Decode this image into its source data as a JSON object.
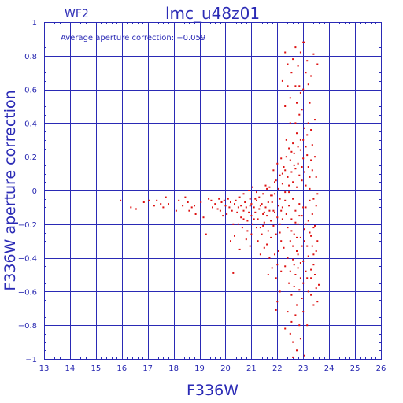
{
  "chart_data": {
    "type": "scatter",
    "title": "lmc_u48z01",
    "subtitle": "WF2",
    "annotation": "Average aperture correction: −0.059",
    "xlabel": "F336W",
    "ylabel": "F336W aperture correction",
    "xlim": [
      13,
      26
    ],
    "ylim": [
      -1,
      1
    ],
    "x_ticks": [
      "13",
      "14",
      "15",
      "16",
      "17",
      "18",
      "19",
      "20",
      "21",
      "22",
      "23",
      "24",
      "25",
      "26"
    ],
    "y_ticks": [
      "1",
      "0.8",
      "0.6",
      "0.4",
      "0.2",
      "0",
      "−0.2",
      "−0.4",
      "−0.6",
      "−0.8",
      "−1"
    ],
    "grid": true,
    "average_line": -0.059,
    "colors": {
      "axes": "#2a2ab5",
      "grid": "#2a2ab5",
      "points": "#dd1111",
      "average_line": "#dd1111"
    },
    "points": [
      [
        15.95,
        -0.06
      ],
      [
        16.35,
        -0.1
      ],
      [
        16.55,
        -0.11
      ],
      [
        16.85,
        -0.07
      ],
      [
        17.05,
        -0.06
      ],
      [
        17.25,
        -0.09
      ],
      [
        17.35,
        -0.06
      ],
      [
        17.5,
        -0.08
      ],
      [
        17.6,
        -0.1
      ],
      [
        17.7,
        -0.04
      ],
      [
        17.8,
        -0.08
      ],
      [
        18.1,
        -0.12
      ],
      [
        18.2,
        -0.06
      ],
      [
        18.35,
        -0.09
      ],
      [
        18.45,
        -0.04
      ],
      [
        18.55,
        -0.07
      ],
      [
        18.6,
        -0.12
      ],
      [
        18.7,
        -0.1
      ],
      [
        18.8,
        -0.09
      ],
      [
        18.85,
        -0.14
      ],
      [
        19.05,
        -0.07
      ],
      [
        19.15,
        -0.16
      ],
      [
        19.25,
        -0.26
      ],
      [
        19.35,
        -0.05
      ],
      [
        19.45,
        -0.06
      ],
      [
        19.5,
        -0.1
      ],
      [
        19.6,
        -0.08
      ],
      [
        19.7,
        -0.11
      ],
      [
        19.75,
        -0.05
      ],
      [
        19.8,
        -0.12
      ],
      [
        19.85,
        -0.07
      ],
      [
        19.9,
        -0.15
      ],
      [
        19.95,
        -0.06
      ],
      [
        20.0,
        -0.09
      ],
      [
        20.05,
        -0.14
      ],
      [
        20.1,
        -0.05
      ],
      [
        20.15,
        -0.1
      ],
      [
        20.2,
        -0.07
      ],
      [
        20.25,
        -0.12
      ],
      [
        20.3,
        -0.2
      ],
      [
        20.35,
        -0.08
      ],
      [
        20.4,
        -0.06
      ],
      [
        20.45,
        -0.13
      ],
      [
        20.5,
        -0.1
      ],
      [
        20.55,
        -0.04
      ],
      [
        20.6,
        -0.16
      ],
      [
        20.6,
        -0.09
      ],
      [
        20.65,
        -0.22
      ],
      [
        20.7,
        -0.12
      ],
      [
        20.75,
        -0.07
      ],
      [
        20.8,
        -0.1
      ],
      [
        20.85,
        -0.18
      ],
      [
        20.9,
        -0.13
      ],
      [
        20.95,
        -0.05
      ],
      [
        21.0,
        -0.15
      ],
      [
        21.0,
        -0.08
      ],
      [
        21.05,
        -0.2
      ],
      [
        21.1,
        -0.1
      ],
      [
        21.15,
        -0.13
      ],
      [
        21.2,
        -0.06
      ],
      [
        21.25,
        -0.17
      ],
      [
        21.3,
        -0.11
      ],
      [
        21.35,
        -0.22
      ],
      [
        21.4,
        -0.08
      ],
      [
        21.45,
        -0.14
      ],
      [
        21.5,
        -0.19
      ],
      [
        21.55,
        -0.1
      ],
      [
        21.6,
        -0.15
      ],
      [
        21.65,
        -0.24
      ],
      [
        21.7,
        -0.12
      ],
      [
        21.75,
        -0.18
      ],
      [
        21.8,
        -0.07
      ],
      [
        21.85,
        -0.21
      ],
      [
        21.9,
        -0.13
      ],
      [
        21.95,
        -0.26
      ],
      [
        22.0,
        -0.16
      ],
      [
        22.05,
        -0.09
      ],
      [
        22.1,
        -0.2
      ],
      [
        22.15,
        -0.12
      ],
      [
        22.2,
        -0.17
      ],
      [
        20.2,
        -0.3
      ],
      [
        20.35,
        -0.27
      ],
      [
        20.3,
        -0.49
      ],
      [
        20.55,
        -0.35
      ],
      [
        20.8,
        -0.29
      ],
      [
        20.95,
        -0.33
      ],
      [
        21.0,
        -0.26
      ],
      [
        21.25,
        -0.3
      ],
      [
        21.5,
        -0.34
      ],
      [
        21.7,
        -0.4
      ],
      [
        21.9,
        -0.38
      ],
      [
        22.0,
        -0.44
      ],
      [
        21.8,
        -0.46
      ],
      [
        21.95,
        -0.52
      ],
      [
        22.1,
        -0.6
      ],
      [
        22.15,
        -0.48
      ],
      [
        22.05,
        -0.36
      ],
      [
        21.65,
        -0.5
      ],
      [
        22.0,
        -0.66
      ],
      [
        21.95,
        -0.71
      ],
      [
        21.55,
        0.03
      ],
      [
        21.7,
        0.02
      ],
      [
        21.85,
        0.12
      ],
      [
        21.9,
        -0.02
      ],
      [
        21.95,
        0.06
      ],
      [
        22.0,
        0.16
      ],
      [
        22.05,
        0.01
      ],
      [
        22.1,
        0.09
      ],
      [
        22.15,
        0.19
      ],
      [
        22.2,
        0.04
      ],
      [
        22.25,
        0.14
      ],
      [
        22.3,
        -0.01
      ],
      [
        22.35,
        0.2
      ],
      [
        22.4,
        0.08
      ],
      [
        22.45,
        0.03
      ],
      [
        22.5,
        0.18
      ],
      [
        22.55,
        0.11
      ],
      [
        22.6,
        0.05
      ],
      [
        22.65,
        0.22
      ],
      [
        22.7,
        0.13
      ],
      [
        22.75,
        0.02
      ],
      [
        22.8,
        0.16
      ],
      [
        22.85,
        0.09
      ],
      [
        22.9,
        0.24
      ],
      [
        22.95,
        0.06
      ],
      [
        23.0,
        0.19
      ],
      [
        23.05,
        0.11
      ],
      [
        23.1,
        0.03
      ],
      [
        23.15,
        0.21
      ],
      [
        23.2,
        0.14
      ],
      [
        23.25,
        0.08
      ],
      [
        23.3,
        0.18
      ],
      [
        23.35,
        0.27
      ],
      [
        22.6,
        0.28
      ],
      [
        22.75,
        0.34
      ],
      [
        22.9,
        0.3
      ],
      [
        23.05,
        0.37
      ],
      [
        23.15,
        0.33
      ],
      [
        22.5,
        0.4
      ],
      [
        22.85,
        0.45
      ],
      [
        22.3,
        -0.06
      ],
      [
        22.35,
        -0.14
      ],
      [
        22.4,
        -0.22
      ],
      [
        22.45,
        -0.09
      ],
      [
        22.5,
        -0.3
      ],
      [
        22.55,
        -0.17
      ],
      [
        22.6,
        -0.05
      ],
      [
        22.65,
        -0.26
      ],
      [
        22.7,
        -0.12
      ],
      [
        22.75,
        -0.36
      ],
      [
        22.8,
        -0.2
      ],
      [
        22.85,
        -0.08
      ],
      [
        22.9,
        -0.28
      ],
      [
        22.95,
        -0.15
      ],
      [
        23.0,
        -0.42
      ],
      [
        23.05,
        -0.23
      ],
      [
        23.1,
        -0.1
      ],
      [
        23.15,
        -0.33
      ],
      [
        23.2,
        -0.18
      ],
      [
        23.25,
        -0.06
      ],
      [
        23.3,
        -0.27
      ],
      [
        23.35,
        -0.14
      ],
      [
        23.4,
        -0.38
      ],
      [
        23.45,
        -0.21
      ],
      [
        23.5,
        -0.09
      ],
      [
        23.55,
        -0.3
      ],
      [
        22.25,
        -0.34
      ],
      [
        22.3,
        -0.45
      ],
      [
        22.4,
        -0.4
      ],
      [
        22.45,
        -0.55
      ],
      [
        22.5,
        -0.48
      ],
      [
        22.55,
        -0.62
      ],
      [
        22.6,
        -0.41
      ],
      [
        22.65,
        -0.57
      ],
      [
        22.7,
        -0.5
      ],
      [
        22.75,
        -0.68
      ],
      [
        22.8,
        -0.46
      ],
      [
        22.85,
        -0.59
      ],
      [
        22.9,
        -0.52
      ],
      [
        22.95,
        -0.64
      ],
      [
        23.0,
        -0.55
      ],
      [
        23.1,
        -0.48
      ],
      [
        23.2,
        -0.6
      ],
      [
        23.3,
        -0.52
      ],
      [
        23.4,
        -0.44
      ],
      [
        23.5,
        -0.58
      ],
      [
        23.55,
        -0.66
      ],
      [
        22.4,
        -0.72
      ],
      [
        22.55,
        -0.78
      ],
      [
        22.7,
        -0.74
      ],
      [
        22.85,
        -0.8
      ],
      [
        23.0,
        -0.72
      ],
      [
        22.5,
        -0.85
      ],
      [
        22.6,
        -0.9
      ],
      [
        22.75,
        -0.95
      ],
      [
        22.9,
        -0.88
      ],
      [
        22.6,
        -0.99
      ],
      [
        23.05,
        -0.98
      ],
      [
        22.3,
        -0.82
      ],
      [
        23.15,
        -0.8
      ],
      [
        22.3,
        0.5
      ],
      [
        22.5,
        0.55
      ],
      [
        22.7,
        0.62
      ],
      [
        22.9,
        0.58
      ],
      [
        23.1,
        0.7
      ],
      [
        23.3,
        0.68
      ],
      [
        22.4,
        0.75
      ],
      [
        22.6,
        0.78
      ],
      [
        22.8,
        0.74
      ],
      [
        22.3,
        0.82
      ],
      [
        22.7,
        0.85
      ],
      [
        22.9,
        0.82
      ],
      [
        23.05,
        0.88
      ],
      [
        23.4,
        0.81
      ],
      [
        23.55,
        0.75
      ],
      [
        23.0,
        0.88
      ],
      [
        22.2,
        0.65
      ],
      [
        23.25,
        0.52
      ],
      [
        22.35,
        0.3
      ],
      [
        23.45,
        0.42
      ],
      [
        21.9,
        0.05
      ],
      [
        21.8,
        -0.03
      ],
      [
        21.6,
        0.01
      ],
      [
        21.45,
        -0.02
      ],
      [
        21.3,
        -0.04
      ],
      [
        21.2,
        -0.01
      ],
      [
        20.9,
        0.0
      ],
      [
        20.7,
        -0.02
      ],
      [
        21.05,
        0.02
      ],
      [
        21.15,
        -0.05
      ],
      [
        21.5,
        -0.13
      ],
      [
        21.65,
        -0.07
      ],
      [
        21.85,
        -0.12
      ],
      [
        22.1,
        -0.05
      ],
      [
        22.2,
        -0.1
      ],
      [
        21.75,
        -0.28
      ],
      [
        21.6,
        -0.32
      ],
      [
        21.4,
        -0.26
      ],
      [
        21.35,
        -0.38
      ],
      [
        21.2,
        -0.22
      ],
      [
        20.85,
        -0.24
      ],
      [
        20.7,
        -0.17
      ],
      [
        20.5,
        -0.2
      ],
      [
        20.95,
        -0.09
      ],
      [
        21.1,
        -0.17
      ],
      [
        21.35,
        -0.09
      ],
      [
        21.45,
        -0.21
      ],
      [
        21.75,
        -0.03
      ],
      [
        22.1,
        -0.25
      ],
      [
        22.15,
        -0.3
      ],
      [
        22.45,
        -0.01
      ],
      [
        22.55,
        -0.24
      ],
      [
        22.6,
        -0.33
      ],
      [
        22.65,
        -0.44
      ],
      [
        22.7,
        -0.19
      ],
      [
        22.75,
        -0.28
      ],
      [
        22.8,
        -0.38
      ],
      [
        22.85,
        -0.15
      ],
      [
        22.9,
        -0.43
      ],
      [
        22.95,
        -0.33
      ],
      [
        23.0,
        -0.1
      ],
      [
        23.05,
        -0.3
      ],
      [
        23.1,
        -0.2
      ],
      [
        23.15,
        -0.52
      ],
      [
        23.2,
        -0.39
      ],
      [
        23.25,
        -0.25
      ],
      [
        23.3,
        -0.47
      ],
      [
        23.35,
        -0.33
      ],
      [
        23.4,
        -0.22
      ],
      [
        23.45,
        -0.5
      ],
      [
        23.5,
        -0.36
      ],
      [
        23.3,
        -0.62
      ],
      [
        23.4,
        -0.68
      ],
      [
        23.6,
        -0.56
      ],
      [
        23.55,
        -0.02
      ],
      [
        23.5,
        0.08
      ],
      [
        23.45,
        0.2
      ],
      [
        23.4,
        -0.05
      ],
      [
        23.35,
        0.12
      ],
      [
        23.25,
        0.01
      ],
      [
        22.2,
        0.1
      ],
      [
        22.3,
        0.12
      ],
      [
        22.45,
        0.25
      ],
      [
        22.55,
        0.23
      ],
      [
        22.65,
        0.15
      ],
      [
        22.8,
        0.26
      ],
      [
        22.95,
        0.14
      ],
      [
        23.0,
        0.3
      ],
      [
        23.1,
        0.26
      ],
      [
        23.2,
        0.4
      ],
      [
        23.3,
        0.36
      ],
      [
        22.7,
        0.4
      ],
      [
        22.85,
        0.62
      ],
      [
        23.0,
        0.6
      ],
      [
        22.75,
        0.52
      ],
      [
        23.2,
        0.63
      ],
      [
        22.55,
        0.7
      ],
      [
        23.15,
        0.77
      ],
      [
        22.95,
        0.48
      ],
      [
        22.4,
        0.62
      ]
    ]
  }
}
